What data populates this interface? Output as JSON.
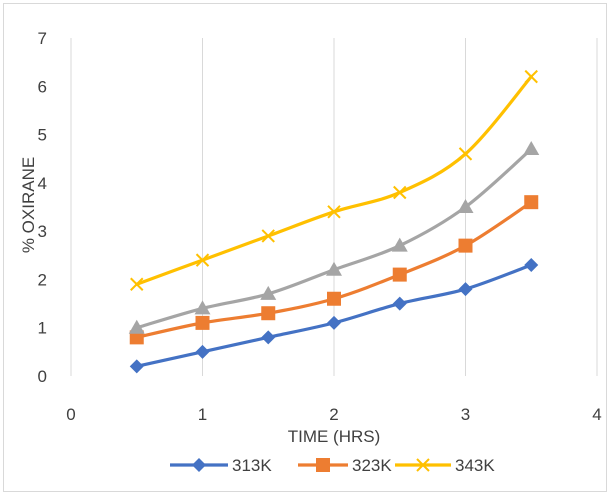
{
  "chart_data": {
    "type": "line",
    "title": "",
    "xlabel": "TIME (HRS)",
    "ylabel": "% OXIRANE",
    "xlim": [
      0,
      4
    ],
    "ylim": [
      0,
      7
    ],
    "xticks": [
      "0",
      "1",
      "2",
      "3",
      "4"
    ],
    "yticks": [
      "0",
      "1",
      "2",
      "3",
      "4",
      "5",
      "6",
      "7"
    ],
    "grid": "vertical",
    "legend_position": "bottom",
    "x": [
      0.5,
      1,
      1.5,
      2,
      2.5,
      3,
      3.5
    ],
    "series": [
      {
        "name": "313K",
        "values": [
          0.2,
          0.5,
          0.8,
          1.1,
          1.5,
          1.8,
          2.3
        ],
        "color": "#4472c4",
        "marker": "diamond"
      },
      {
        "name": "323K",
        "values": [
          0.8,
          1.1,
          1.3,
          1.6,
          2.1,
          2.7,
          3.6
        ],
        "color": "#ed7d31",
        "marker": "square"
      },
      {
        "name": "",
        "values": [
          1.0,
          1.4,
          1.7,
          2.2,
          2.7,
          3.5,
          4.7
        ],
        "color": "#a5a5a5",
        "marker": "triangle"
      },
      {
        "name": "343K",
        "values": [
          1.9,
          2.4,
          2.9,
          3.4,
          3.8,
          4.6,
          6.2
        ],
        "color": "#ffc000",
        "marker": "cross"
      }
    ]
  }
}
